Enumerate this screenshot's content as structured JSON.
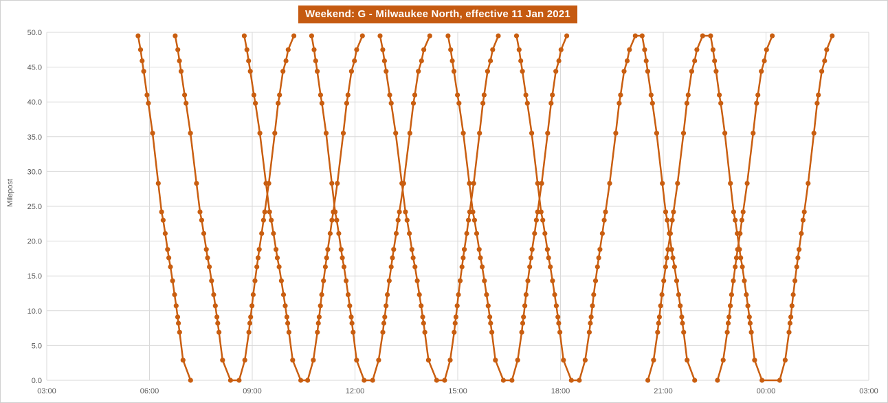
{
  "title": "Weekend: G - Milwaukee North, effective 11 Jan 2021",
  "y_axis": {
    "label": "Milepost",
    "min": 0,
    "max": 50,
    "tick_step": 5,
    "ticks": [
      "0.0",
      "5.0",
      "10.0",
      "15.0",
      "20.0",
      "25.0",
      "30.0",
      "35.0",
      "40.0",
      "45.0",
      "50.0"
    ]
  },
  "x_axis": {
    "start_minutes": 180,
    "end_minutes": 1620,
    "tick_interval_minutes": 180,
    "ticks": [
      "03:00",
      "06:00",
      "09:00",
      "12:00",
      "15:00",
      "18:00",
      "21:00",
      "00:00",
      "03:00"
    ]
  },
  "chart_data": {
    "type": "line",
    "title": "Weekend: G - Milwaukee North, effective 11 Jan 2021",
    "xlabel": "",
    "ylabel": "Milepost",
    "x_unit": "time of day",
    "y_unit": "milepost",
    "ylim": [
      0,
      50
    ],
    "grid": "both",
    "legend": "none",
    "series_color": "#C95E10",
    "marker": "circle",
    "stops_note": "mileposts where stop markers appear on every trip; f_in/f_out = fraction of trip time elapsed at that milepost for inbound (from MP 49.5) and outbound (from MP 0) trains",
    "stops": [
      {
        "mp": 49.5,
        "f_in": 0.0,
        "f_out": 1.0
      },
      {
        "mp": 47.5,
        "f_in": 0.047,
        "f_out": 0.895
      },
      {
        "mp": 45.9,
        "f_in": 0.077,
        "f_out": 0.855
      },
      {
        "mp": 44.4,
        "f_in": 0.107,
        "f_out": 0.8
      },
      {
        "mp": 41.0,
        "f_in": 0.17,
        "f_out": 0.737
      },
      {
        "mp": 39.8,
        "f_in": 0.197,
        "f_out": 0.713
      },
      {
        "mp": 35.5,
        "f_in": 0.276,
        "f_out": 0.651
      },
      {
        "mp": 28.3,
        "f_in": 0.385,
        "f_out": 0.542
      },
      {
        "mp": 24.2,
        "f_in": 0.448,
        "f_out": 0.468
      },
      {
        "mp": 23.0,
        "f_in": 0.478,
        "f_out": 0.445
      },
      {
        "mp": 21.1,
        "f_in": 0.517,
        "f_out": 0.412
      },
      {
        "mp": 18.8,
        "f_in": 0.562,
        "f_out": 0.368
      },
      {
        "mp": 17.6,
        "f_in": 0.585,
        "f_out": 0.346
      },
      {
        "mp": 16.3,
        "f_in": 0.617,
        "f_out": 0.324
      },
      {
        "mp": 14.3,
        "f_in": 0.657,
        "f_out": 0.29
      },
      {
        "mp": 12.3,
        "f_in": 0.695,
        "f_out": 0.257
      },
      {
        "mp": 10.7,
        "f_in": 0.725,
        "f_out": 0.234
      },
      {
        "mp": 9.1,
        "f_in": 0.754,
        "f_out": 0.211
      },
      {
        "mp": 8.2,
        "f_in": 0.769,
        "f_out": 0.196
      },
      {
        "mp": 6.9,
        "f_in": 0.791,
        "f_out": 0.178
      },
      {
        "mp": 2.9,
        "f_in": 0.856,
        "f_out": 0.104
      },
      {
        "mp": 0.0,
        "f_in": 1.0,
        "f_out": 0.0
      }
    ],
    "trains": [
      {
        "id": "inbound-1",
        "direction": "inbound",
        "dep": "05:40",
        "arr": "07:12",
        "dep_min": 340,
        "arr_min": 432
      },
      {
        "id": "inbound-2",
        "direction": "inbound",
        "dep": "06:45",
        "arr": "08:22",
        "dep_min": 405,
        "arr_min": 502
      },
      {
        "id": "inbound-3",
        "direction": "inbound",
        "dep": "08:46",
        "arr": "10:25",
        "dep_min": 526,
        "arr_min": 625
      },
      {
        "id": "inbound-4",
        "direction": "inbound",
        "dep": "10:44",
        "arr": "12:16",
        "dep_min": 644,
        "arr_min": 736
      },
      {
        "id": "inbound-5",
        "direction": "inbound",
        "dep": "12:44",
        "arr": "14:23",
        "dep_min": 764,
        "arr_min": 863
      },
      {
        "id": "inbound-6",
        "direction": "inbound",
        "dep": "14:43",
        "arr": "16:20",
        "dep_min": 883,
        "arr_min": 980
      },
      {
        "id": "inbound-7",
        "direction": "inbound",
        "dep": "16:43",
        "arr": "18:19",
        "dep_min": 1003,
        "arr_min": 1099
      },
      {
        "id": "inbound-8",
        "direction": "inbound",
        "dep": "20:23",
        "arr": "21:55",
        "dep_min": 1223,
        "arr_min": 1315
      },
      {
        "id": "inbound-9",
        "direction": "inbound",
        "dep": "22:23",
        "arr": "23:53",
        "dep_min": 1343,
        "arr_min": 1433
      },
      {
        "id": "outbound-1",
        "direction": "outbound",
        "dep": "08:37",
        "arr": "10:13",
        "dep_min": 517,
        "arr_min": 613
      },
      {
        "id": "outbound-2",
        "direction": "outbound",
        "dep": "10:37",
        "arr": "12:13",
        "dep_min": 637,
        "arr_min": 733
      },
      {
        "id": "outbound-3",
        "direction": "outbound",
        "dep": "12:31",
        "arr": "14:11",
        "dep_min": 751,
        "arr_min": 851
      },
      {
        "id": "outbound-4",
        "direction": "outbound",
        "dep": "14:37",
        "arr": "16:11",
        "dep_min": 877,
        "arr_min": 971
      },
      {
        "id": "outbound-5",
        "direction": "outbound",
        "dep": "16:35",
        "arr": "18:11",
        "dep_min": 995,
        "arr_min": 1091
      },
      {
        "id": "outbound-6",
        "direction": "outbound",
        "dep": "18:33",
        "arr": "20:11",
        "dep_min": 1113,
        "arr_min": 1211
      },
      {
        "id": "outbound-7",
        "direction": "outbound",
        "dep": "20:33",
        "arr": "22:09",
        "dep_min": 1233,
        "arr_min": 1329
      },
      {
        "id": "outbound-8",
        "direction": "outbound",
        "dep": "22:35",
        "arr": "00:11",
        "dep_min": 1355,
        "arr_min": 1451
      },
      {
        "id": "outbound-9",
        "direction": "outbound",
        "dep": "00:24",
        "arr": "01:56",
        "dep_min": 1464,
        "arr_min": 1556
      }
    ],
    "connectors": [
      {
        "terminal": "milepost-0",
        "from": "inbound-2",
        "to": "outbound-1"
      },
      {
        "terminal": "milepost-0",
        "from": "inbound-3",
        "to": "outbound-2"
      },
      {
        "terminal": "milepost-0",
        "from": "inbound-4",
        "to": "outbound-3"
      },
      {
        "terminal": "milepost-0",
        "from": "inbound-5",
        "to": "outbound-4"
      },
      {
        "terminal": "milepost-0",
        "from": "inbound-6",
        "to": "outbound-5"
      },
      {
        "terminal": "milepost-0",
        "from": "inbound-7",
        "to": "outbound-6"
      },
      {
        "terminal": "milepost-0",
        "from": "inbound-9",
        "to": "outbound-9"
      },
      {
        "terminal": "milepost-49.5",
        "from": "outbound-6",
        "to": "inbound-8"
      },
      {
        "terminal": "milepost-49.5",
        "from": "outbound-7",
        "to": "inbound-9"
      }
    ]
  },
  "colors": {
    "series": "#C95E10",
    "title_background": "#C55A11",
    "title_text": "#FFFFFF",
    "gridline": "#D9D9D9",
    "axis_text": "#595959",
    "background": "#FFFFFF"
  }
}
